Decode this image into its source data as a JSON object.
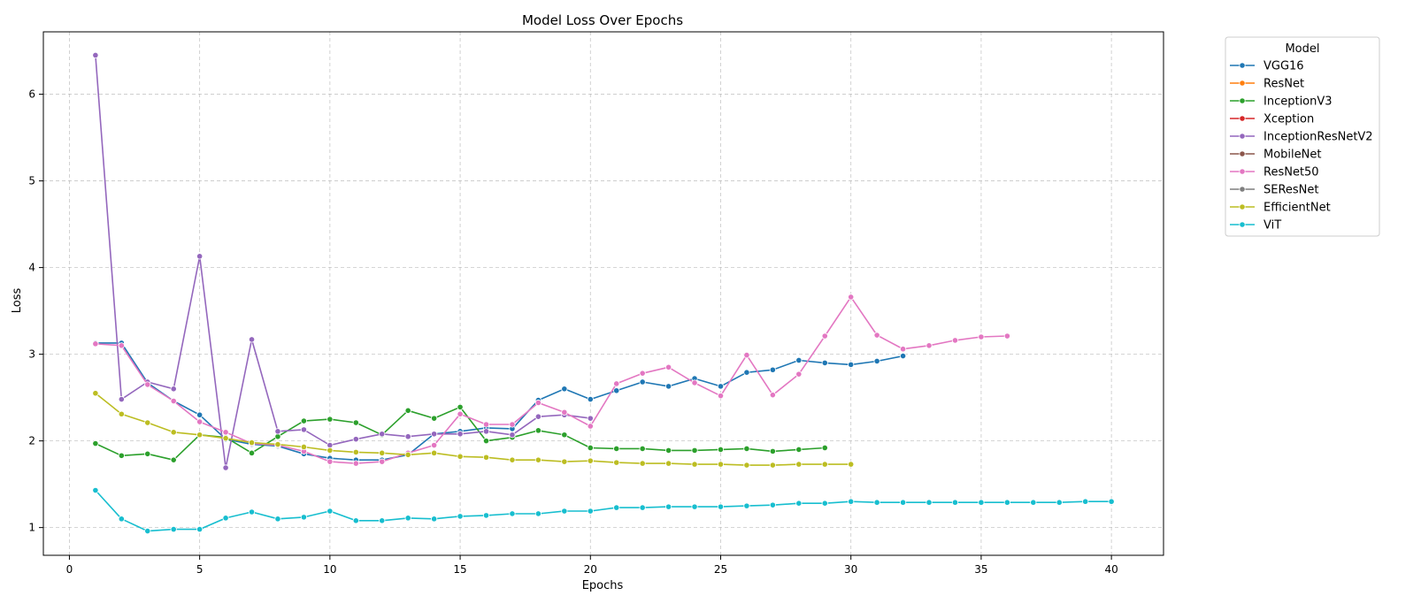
{
  "chart_data": {
    "type": "line",
    "title": "Model Loss Over Epochs",
    "xlabel": "Epochs",
    "ylabel": "Loss",
    "xlim": [
      -1,
      42
    ],
    "ylim": [
      0.68,
      6.72
    ],
    "xticks": [
      0,
      5,
      10,
      15,
      20,
      25,
      30,
      35,
      40
    ],
    "yticks": [
      1,
      2,
      3,
      4,
      5,
      6
    ],
    "grid": true,
    "legend_title": "Model",
    "legend_position": "outside-top-right",
    "series": [
      {
        "name": "VGG16",
        "color": "#1f77b4",
        "x": [
          1,
          2,
          3,
          4,
          5,
          6,
          7,
          8,
          9,
          10,
          11,
          12,
          13,
          14,
          15,
          16,
          17,
          18,
          19,
          20,
          21,
          22,
          23,
          24,
          25,
          26,
          27,
          28,
          29,
          30,
          31,
          32
        ],
        "values": [
          3.13,
          3.13,
          2.67,
          2.46,
          2.3,
          2.02,
          1.96,
          1.94,
          1.85,
          1.8,
          1.78,
          1.78,
          1.84,
          2.08,
          2.11,
          2.15,
          2.14,
          2.47,
          2.6,
          2.48,
          2.58,
          2.68,
          2.63,
          2.72,
          2.63,
          2.79,
          2.82,
          2.93,
          2.9,
          2.88,
          2.92,
          2.98
        ]
      },
      {
        "name": "ResNet",
        "color": "#ff7f0e",
        "x": [],
        "values": []
      },
      {
        "name": "InceptionV3",
        "color": "#2ca02c",
        "x": [
          1,
          2,
          3,
          4,
          5,
          6,
          7,
          8,
          9,
          10,
          11,
          12,
          13,
          14,
          15,
          16,
          17,
          18,
          19,
          20,
          21,
          22,
          23,
          24,
          25,
          26,
          27,
          28,
          29
        ],
        "values": [
          1.97,
          1.83,
          1.85,
          1.78,
          2.07,
          2.04,
          1.86,
          2.05,
          2.23,
          2.25,
          2.21,
          2.07,
          2.35,
          2.26,
          2.39,
          2.0,
          2.04,
          2.12,
          2.07,
          1.92,
          1.91,
          1.91,
          1.89,
          1.89,
          1.9,
          1.91,
          1.88,
          1.9,
          1.92
        ]
      },
      {
        "name": "Xception",
        "color": "#d62728",
        "x": [],
        "values": []
      },
      {
        "name": "InceptionResNetV2",
        "color": "#9467bd",
        "x": [
          1,
          2,
          3,
          4,
          5,
          6,
          7,
          8,
          9,
          10,
          11,
          12,
          13,
          14,
          15,
          16,
          17,
          18,
          19,
          20
        ],
        "values": [
          6.45,
          2.48,
          2.68,
          2.6,
          4.13,
          1.69,
          3.17,
          2.11,
          2.13,
          1.95,
          2.02,
          2.08,
          2.05,
          2.08,
          2.08,
          2.11,
          2.07,
          2.28,
          2.3,
          2.26
        ]
      },
      {
        "name": "MobileNet",
        "color": "#8c564b",
        "x": [],
        "values": []
      },
      {
        "name": "ResNet50",
        "color": "#e377c2",
        "x": [
          1,
          2,
          3,
          4,
          5,
          6,
          7,
          8,
          9,
          10,
          11,
          12,
          13,
          14,
          15,
          16,
          17,
          18,
          19,
          20,
          21,
          22,
          23,
          24,
          25,
          26,
          27,
          28,
          29,
          30,
          31,
          32,
          33,
          34,
          35,
          36
        ],
        "values": [
          3.12,
          3.1,
          2.65,
          2.46,
          2.22,
          2.1,
          1.97,
          1.95,
          1.88,
          1.76,
          1.74,
          1.76,
          1.86,
          1.95,
          2.31,
          2.19,
          2.19,
          2.44,
          2.33,
          2.17,
          2.66,
          2.78,
          2.85,
          2.67,
          2.52,
          2.99,
          2.53,
          2.77,
          3.21,
          3.66,
          3.22,
          3.06,
          3.1,
          3.16,
          3.2,
          3.21
        ]
      },
      {
        "name": "SEResNet",
        "color": "#7f7f7f",
        "x": [],
        "values": []
      },
      {
        "name": "EfficientNet",
        "color": "#bcbd22",
        "x": [
          1,
          2,
          3,
          4,
          5,
          6,
          7,
          8,
          9,
          10,
          11,
          12,
          13,
          14,
          15,
          16,
          17,
          18,
          19,
          20,
          21,
          22,
          23,
          24,
          25,
          26,
          27,
          28,
          29,
          30
        ],
        "values": [
          2.55,
          2.31,
          2.21,
          2.1,
          2.07,
          2.03,
          1.98,
          1.96,
          1.93,
          1.89,
          1.87,
          1.86,
          1.84,
          1.86,
          1.82,
          1.81,
          1.78,
          1.78,
          1.76,
          1.77,
          1.75,
          1.74,
          1.74,
          1.73,
          1.73,
          1.72,
          1.72,
          1.73,
          1.73,
          1.73
        ]
      },
      {
        "name": "ViT",
        "color": "#17becf",
        "x": [
          1,
          2,
          3,
          4,
          5,
          6,
          7,
          8,
          9,
          10,
          11,
          12,
          13,
          14,
          15,
          16,
          17,
          18,
          19,
          20,
          21,
          22,
          23,
          24,
          25,
          26,
          27,
          28,
          29,
          30,
          31,
          32,
          33,
          34,
          35,
          36,
          37,
          38,
          39,
          40
        ],
        "values": [
          1.43,
          1.1,
          0.96,
          0.98,
          0.98,
          1.11,
          1.18,
          1.1,
          1.12,
          1.19,
          1.08,
          1.08,
          1.11,
          1.1,
          1.13,
          1.14,
          1.16,
          1.16,
          1.19,
          1.19,
          1.23,
          1.23,
          1.24,
          1.24,
          1.24,
          1.25,
          1.26,
          1.28,
          1.28,
          1.3,
          1.29,
          1.29,
          1.29,
          1.29,
          1.29,
          1.29,
          1.29,
          1.29,
          1.3,
          1.3
        ]
      }
    ]
  }
}
